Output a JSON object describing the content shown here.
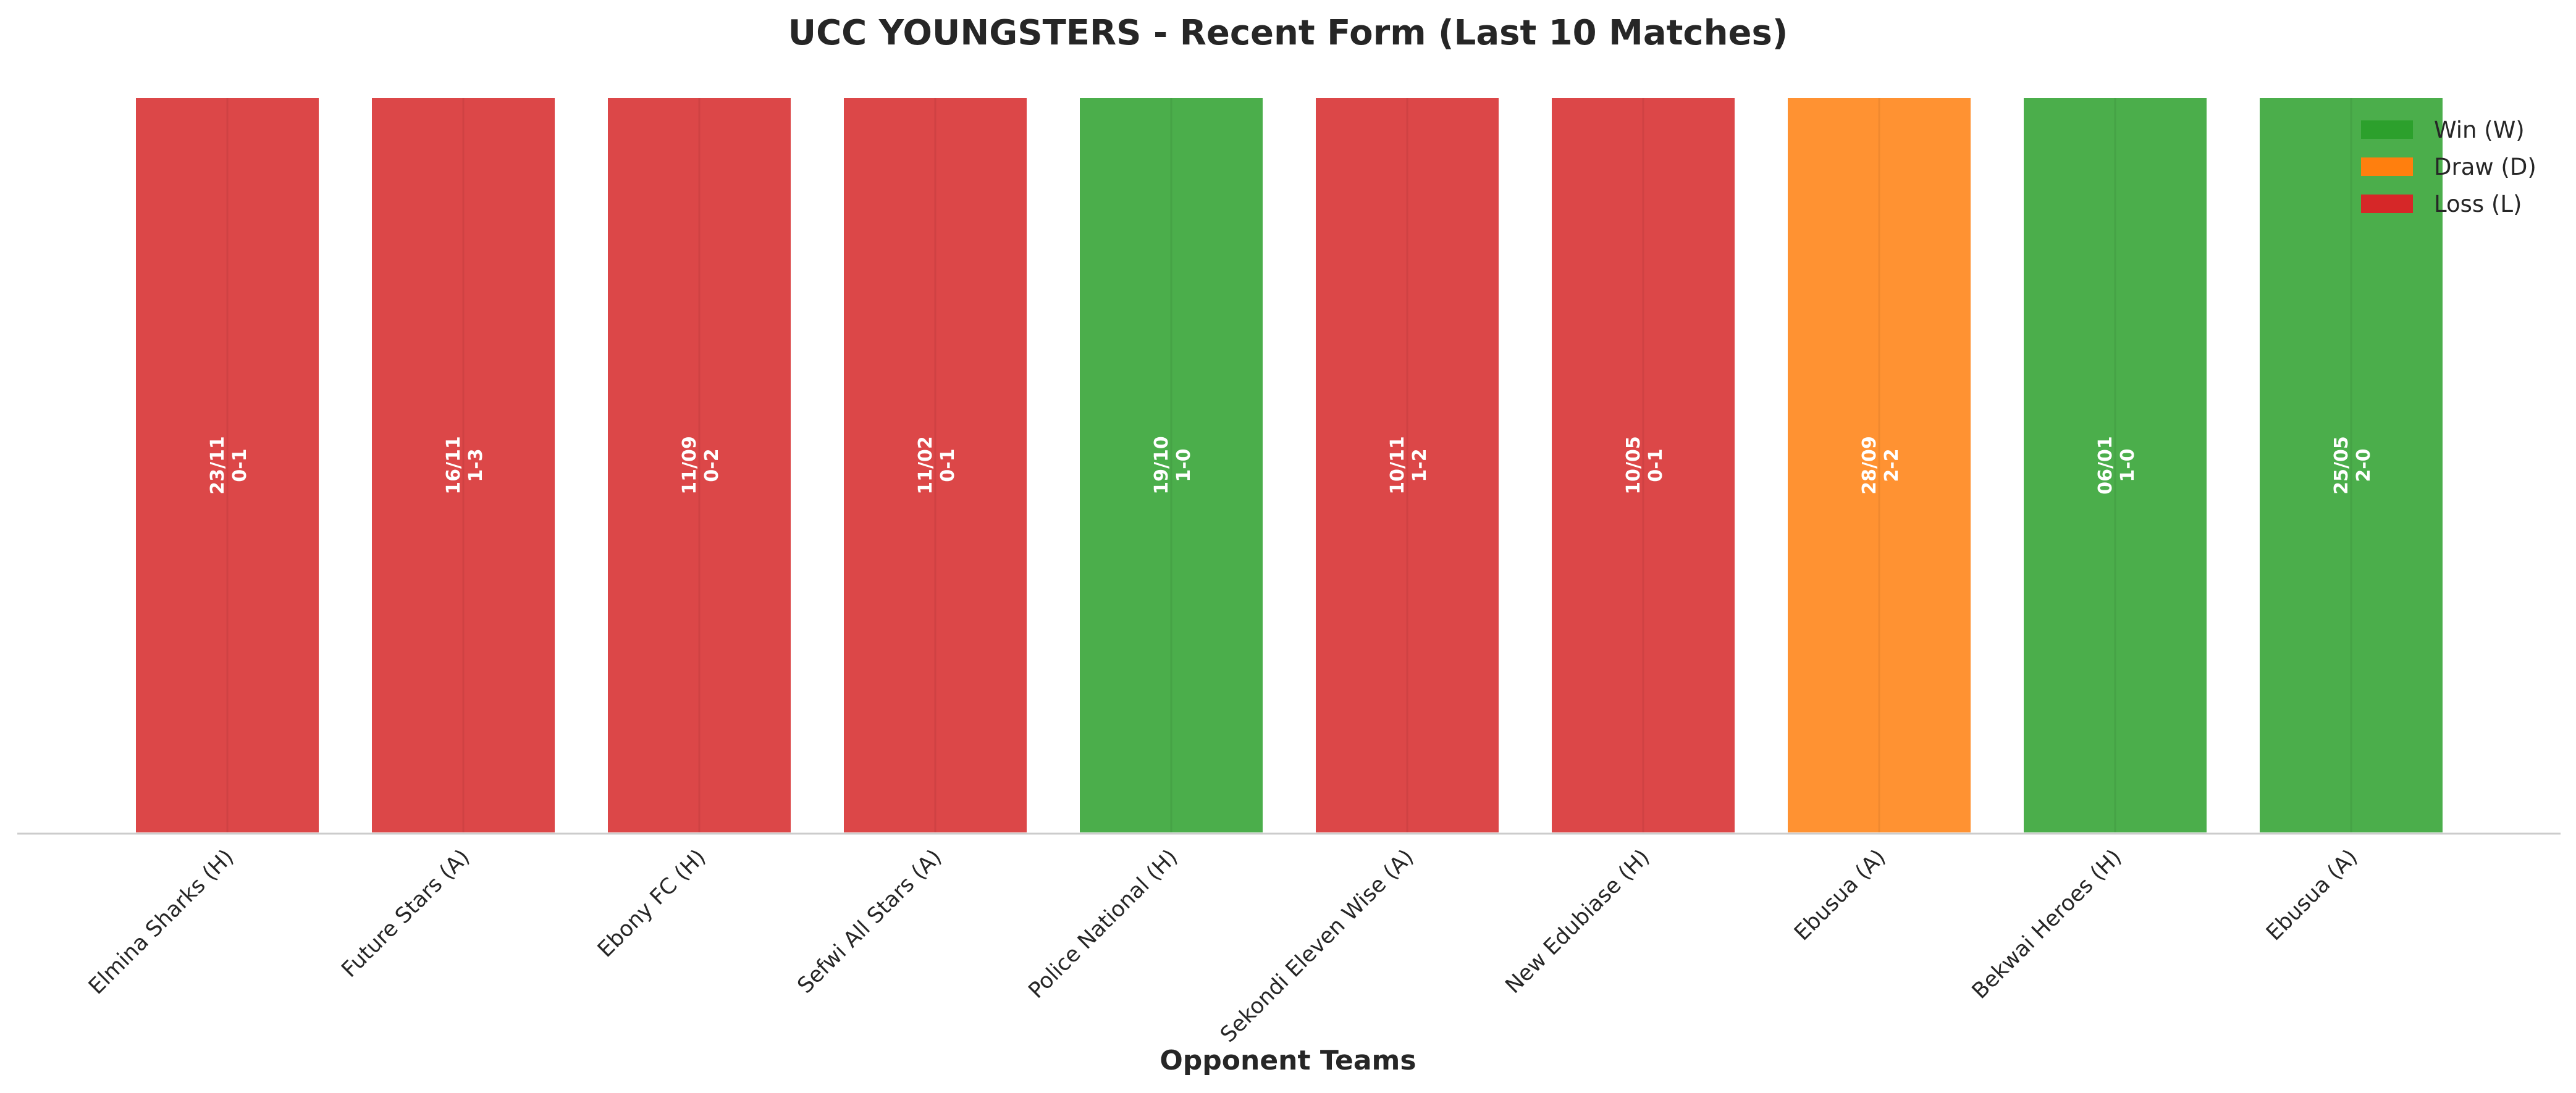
{
  "chart_data": {
    "type": "bar",
    "title": "UCC YOUNGSTERS - Recent Form (Last 10 Matches)",
    "xlabel": "Opponent Teams",
    "ylabel": "",
    "grid": false,
    "legend_position": "top-right",
    "categories": [
      "Elmina Sharks (H)",
      "Future Stars (A)",
      "Ebony FC (H)",
      "Sefwi All Stars (A)",
      "Police National (H)",
      "Sekondi Eleven Wise (A)",
      "New Edubiase (H)",
      "Ebusua (A)",
      "Bekwai Heroes (H)",
      "Ebusua (A)"
    ],
    "values": [
      1,
      1,
      1,
      1,
      1,
      1,
      1,
      1,
      1,
      1
    ],
    "results": [
      "L",
      "L",
      "L",
      "L",
      "W",
      "L",
      "L",
      "D",
      "W",
      "W"
    ],
    "dates": [
      "23/11",
      "16/11",
      "11/09",
      "11/02",
      "19/10",
      "10/11",
      "10/05",
      "28/09",
      "06/01",
      "25/05"
    ],
    "scores": [
      "0-1",
      "1-3",
      "0-2",
      "0-1",
      "1-0",
      "1-2",
      "0-1",
      "2-2",
      "1-0",
      "2-0"
    ],
    "legend": [
      {
        "key": "W",
        "label": "Win (W)",
        "color": "#2ca02c"
      },
      {
        "key": "D",
        "label": "Draw (D)",
        "color": "#ff7f0e"
      },
      {
        "key": "L",
        "label": "Loss (L)",
        "color": "#d62728"
      }
    ]
  }
}
